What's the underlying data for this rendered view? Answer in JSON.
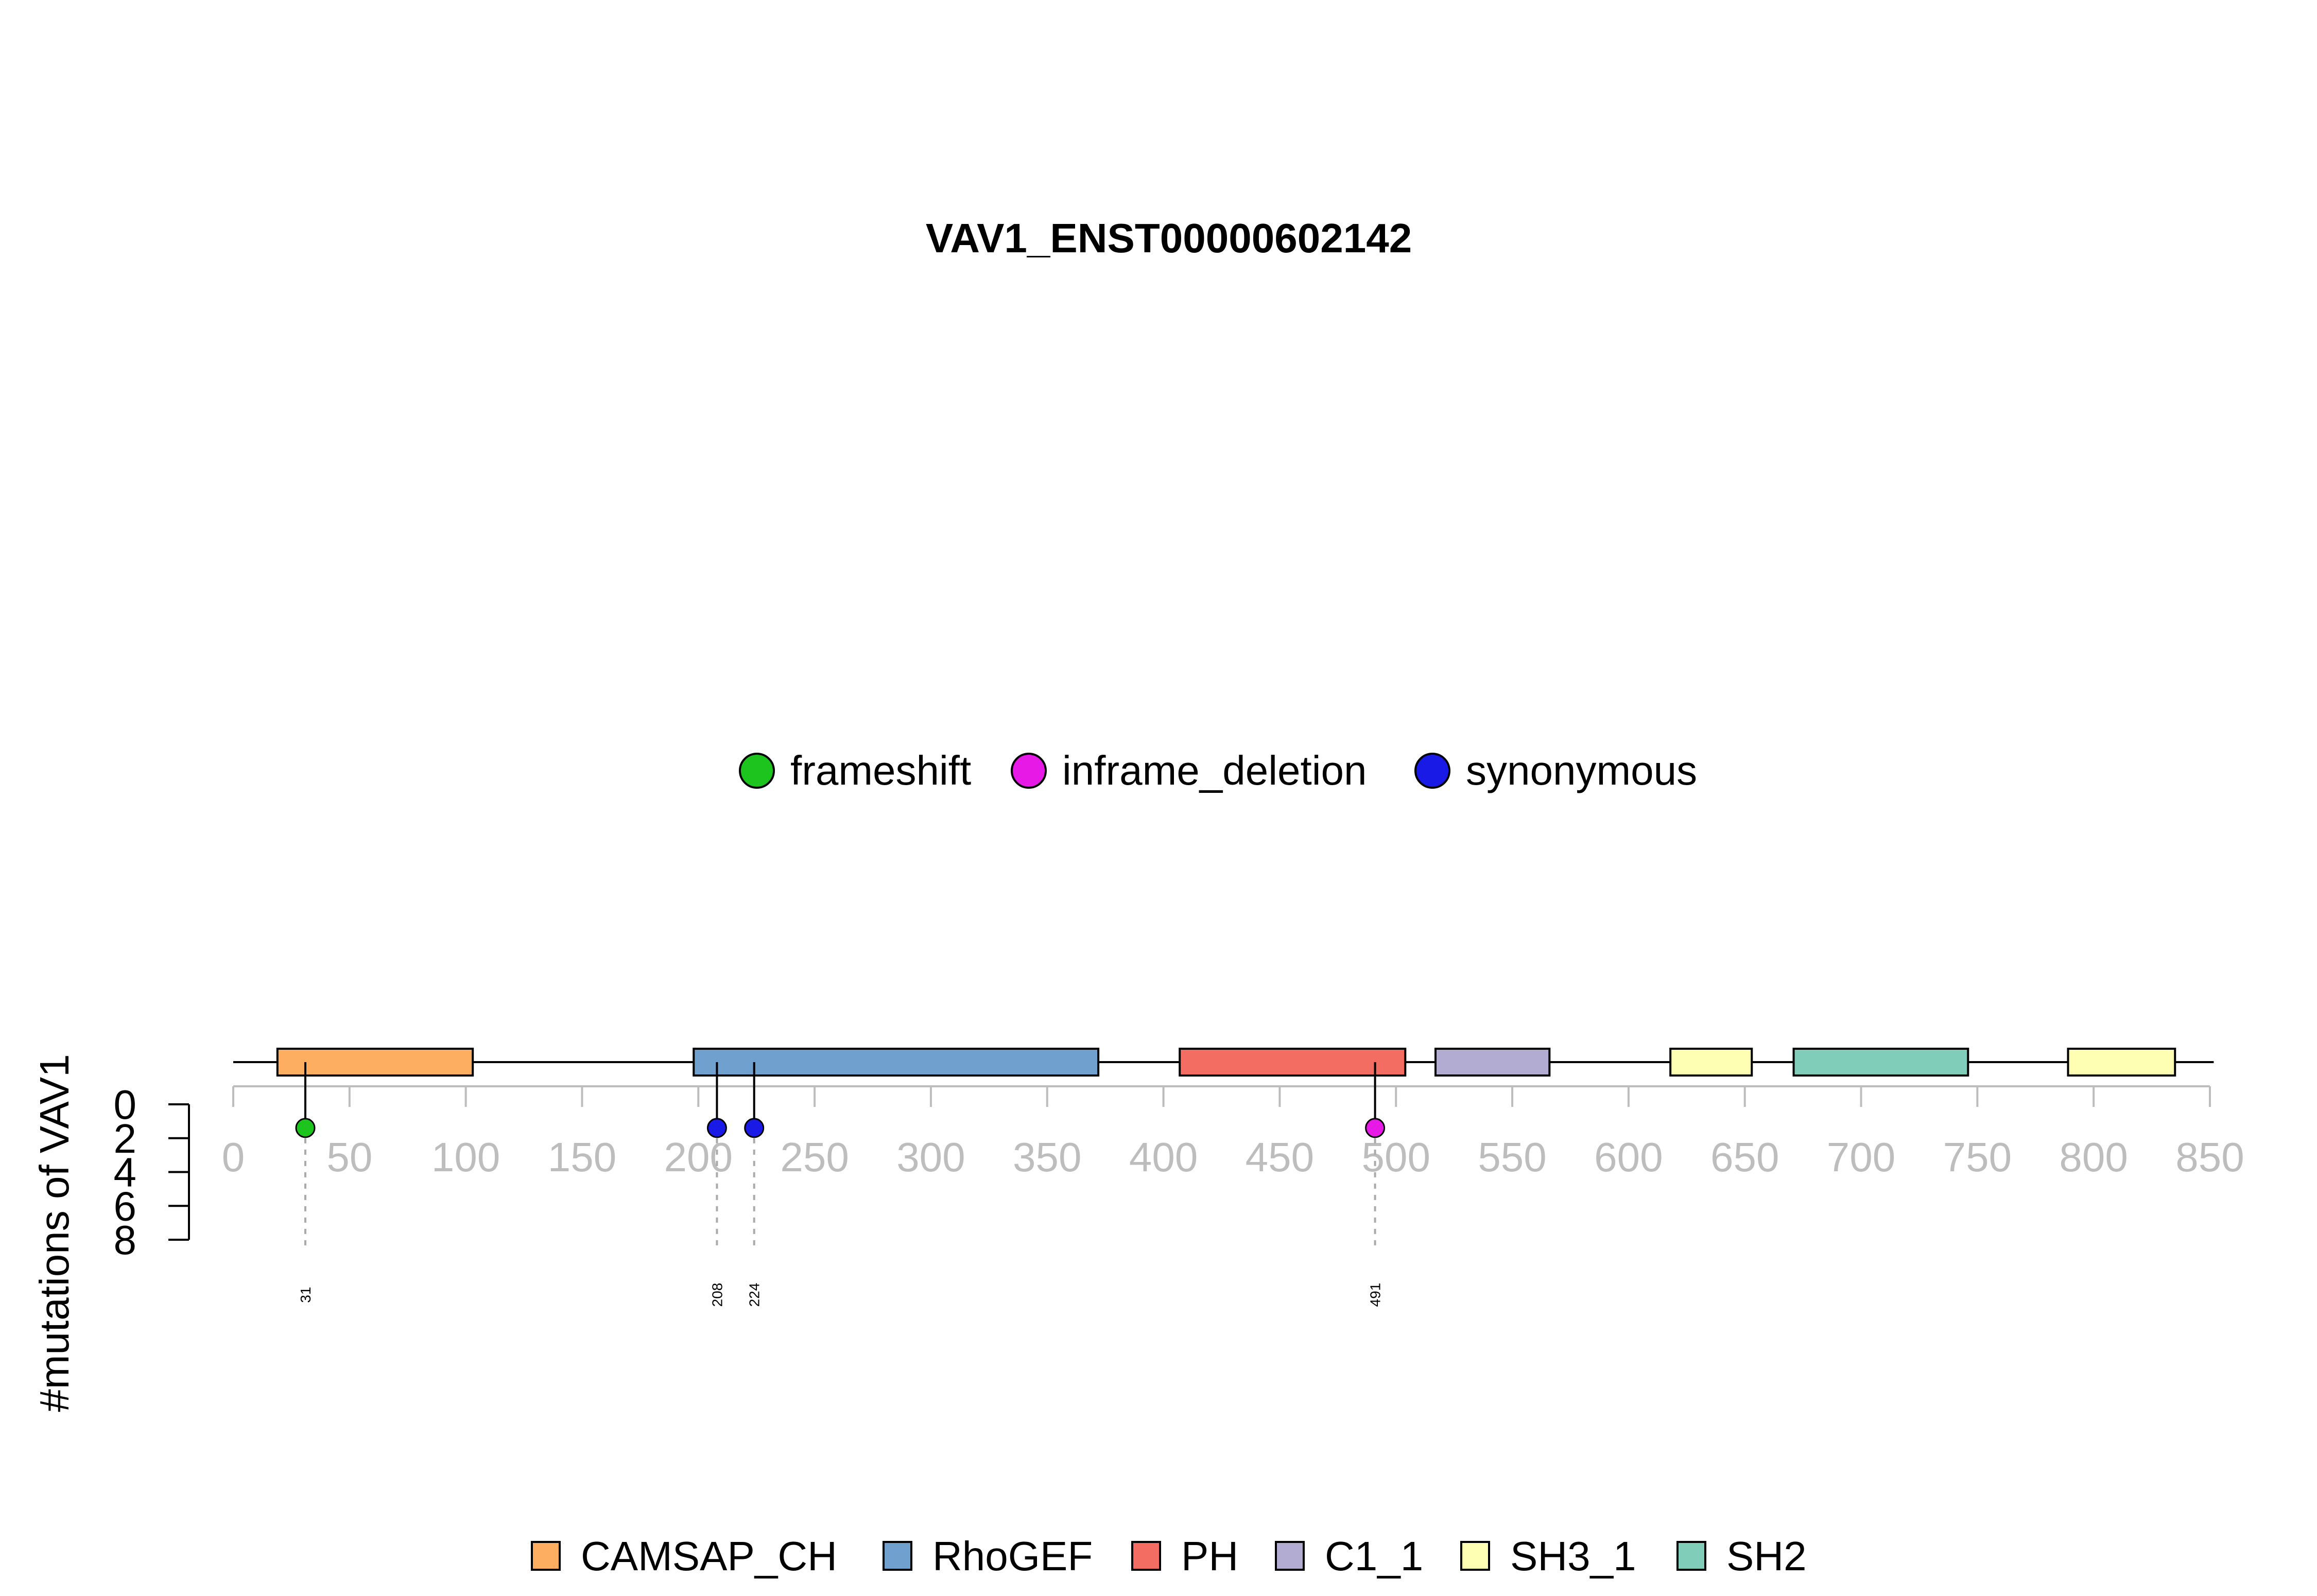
{
  "chart_data": {
    "type": "lollipop",
    "title": "VAV1_ENST00000602142",
    "ylabel": "#mutations of VAV1",
    "protein_length": 845,
    "xlim": [
      0,
      850
    ],
    "x_ticks": [
      0,
      50,
      100,
      150,
      200,
      250,
      300,
      350,
      400,
      450,
      500,
      550,
      600,
      650,
      700,
      750,
      800,
      850
    ],
    "y_ticks": [
      0,
      2,
      4,
      6,
      8
    ],
    "ylim": [
      0,
      8
    ],
    "mutation_legend": [
      {
        "label": "frameshift",
        "color": "#1ec41e"
      },
      {
        "label": "inframe_deletion",
        "color": "#e619e6"
      },
      {
        "label": "synonymous",
        "color": "#1a1ae6"
      }
    ],
    "domain_legend": [
      {
        "label": "CAMSAP_CH",
        "color": "#FDAE61"
      },
      {
        "label": "RhoGEF",
        "color": "#6FA0CE"
      },
      {
        "label": "PH",
        "color": "#F46D63"
      },
      {
        "label": "C1_1",
        "color": "#B2ABD2"
      },
      {
        "label": "SH3_1",
        "color": "#FFFFB3"
      },
      {
        "label": "SH2",
        "color": "#80CDB9"
      }
    ],
    "domains": [
      {
        "name": "CAMSAP_CH",
        "start": 19,
        "end": 103,
        "color": "#FDAE61"
      },
      {
        "name": "RhoGEF",
        "start": 198,
        "end": 372,
        "color": "#6FA0CE"
      },
      {
        "name": "PH",
        "start": 407,
        "end": 504,
        "color": "#F46D63"
      },
      {
        "name": "C1_1",
        "start": 517,
        "end": 566,
        "color": "#B2ABD2"
      },
      {
        "name": "SH3_1",
        "start": 618,
        "end": 653,
        "color": "#FFFFB3"
      },
      {
        "name": "SH2",
        "start": 671,
        "end": 746,
        "color": "#80CDB9"
      },
      {
        "name": "SH3_1",
        "start": 789,
        "end": 835,
        "color": "#FFFFB3"
      }
    ],
    "mutations": [
      {
        "position": 31,
        "label": "31",
        "count": 1,
        "type": "frameshift",
        "color": "#1ec41e"
      },
      {
        "position": 208,
        "label": "208",
        "count": 1,
        "type": "synonymous",
        "color": "#1a1ae6"
      },
      {
        "position": 224,
        "label": "224",
        "count": 1,
        "type": "synonymous",
        "color": "#1a1ae6"
      },
      {
        "position": 491,
        "label": "491",
        "count": 1,
        "type": "inframe_deletion",
        "color": "#e619e6"
      }
    ]
  }
}
